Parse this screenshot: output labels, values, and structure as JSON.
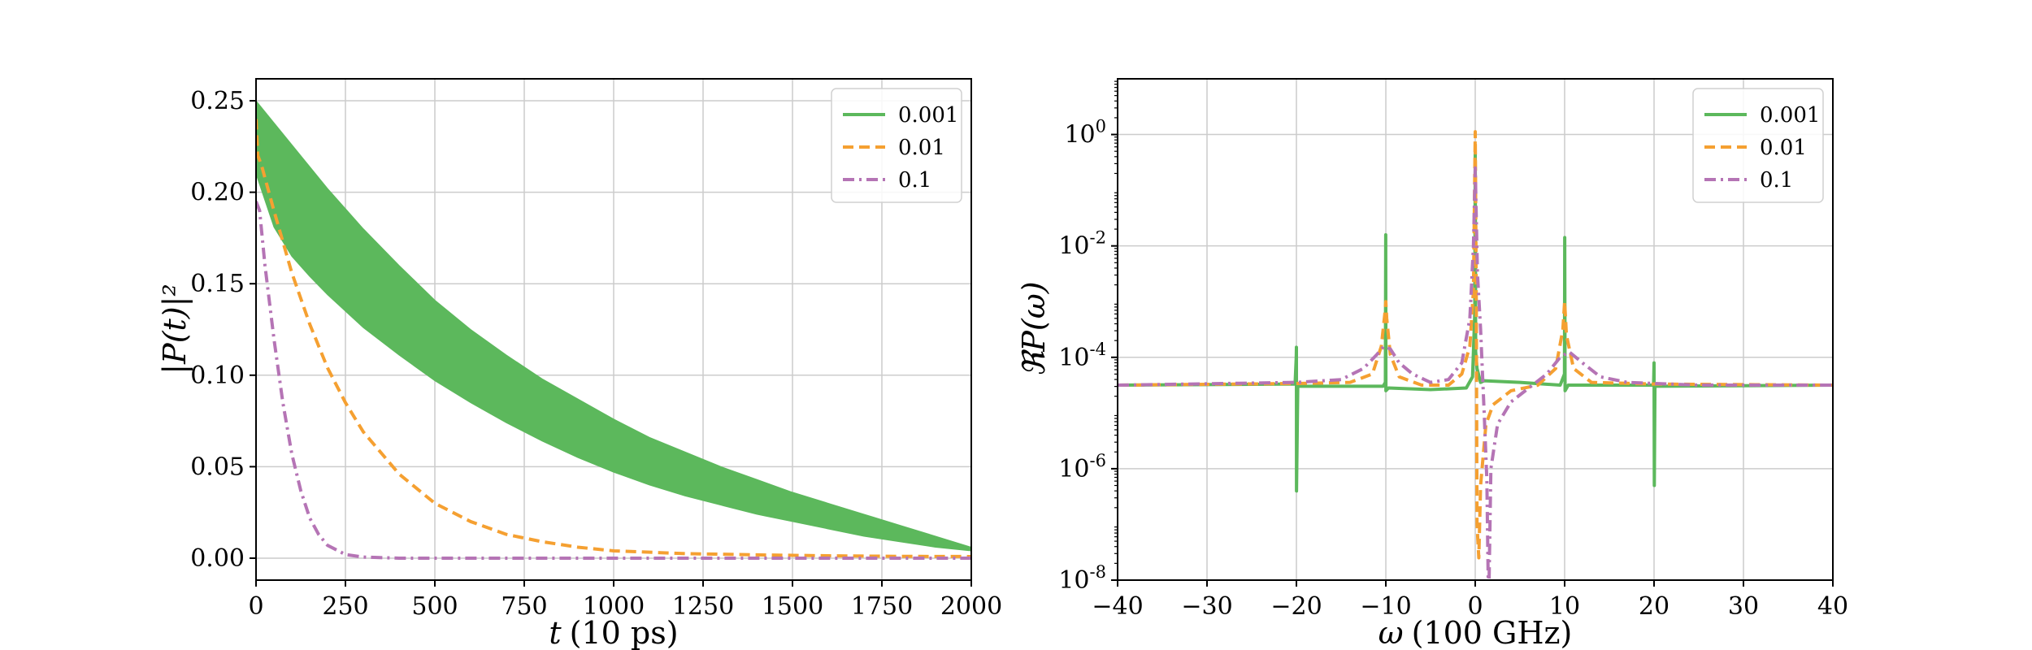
{
  "chart_data": [
    {
      "type": "line",
      "xlabel_var": "t",
      "xlabel_unit": "(10 ps)",
      "ylabel": "|P(t)|²",
      "xlim": [
        0,
        2000
      ],
      "ylim": [
        -0.012,
        0.262
      ],
      "xticks": [
        0,
        250,
        500,
        750,
        1000,
        1250,
        1500,
        1750,
        2000
      ],
      "xtick_labels": [
        "0",
        "250",
        "500",
        "750",
        "1000",
        "1250",
        "1500",
        "1750",
        "2000"
      ],
      "yticks": [
        0.0,
        0.05,
        0.1,
        0.15,
        0.2,
        0.25
      ],
      "ytick_labels": [
        "0.00",
        "0.05",
        "0.10",
        "0.15",
        "0.20",
        "0.25"
      ],
      "grid": true,
      "legend_position": "top-right",
      "series": [
        {
          "name": "0.001",
          "style": "band",
          "color": "#5cb85c",
          "upper": [
            [
              0,
              0.25
            ],
            [
              50,
              0.238
            ],
            [
              100,
              0.226
            ],
            [
              150,
              0.214
            ],
            [
              200,
              0.202
            ],
            [
              250,
              0.191
            ],
            [
              300,
              0.18
            ],
            [
              400,
              0.16
            ],
            [
              500,
              0.141
            ],
            [
              600,
              0.125
            ],
            [
              700,
              0.111
            ],
            [
              800,
              0.098
            ],
            [
              900,
              0.087
            ],
            [
              1000,
              0.076
            ],
            [
              1100,
              0.066
            ],
            [
              1200,
              0.058
            ],
            [
              1300,
              0.05
            ],
            [
              1400,
              0.043
            ],
            [
              1500,
              0.036
            ],
            [
              1600,
              0.03
            ],
            [
              1700,
              0.024
            ],
            [
              1800,
              0.018
            ],
            [
              1900,
              0.012
            ],
            [
              2000,
              0.006
            ]
          ],
          "lower": [
            [
              0,
              0.21
            ],
            [
              50,
              0.181
            ],
            [
              100,
              0.165
            ],
            [
              150,
              0.154
            ],
            [
              200,
              0.144
            ],
            [
              250,
              0.135
            ],
            [
              300,
              0.126
            ],
            [
              400,
              0.111
            ],
            [
              500,
              0.097
            ],
            [
              600,
              0.085
            ],
            [
              700,
              0.074
            ],
            [
              800,
              0.064
            ],
            [
              900,
              0.055
            ],
            [
              1000,
              0.047
            ],
            [
              1100,
              0.04
            ],
            [
              1200,
              0.034
            ],
            [
              1300,
              0.029
            ],
            [
              1400,
              0.024
            ],
            [
              1500,
              0.02
            ],
            [
              1600,
              0.016
            ],
            [
              1700,
              0.012
            ],
            [
              1800,
              0.009
            ],
            [
              1900,
              0.006
            ],
            [
              2000,
              0.004
            ]
          ]
        },
        {
          "name": "0.01",
          "style": "dashed",
          "color": "#f5a031",
          "points": [
            [
              0,
              0.24
            ],
            [
              5,
              0.22
            ],
            [
              15,
              0.215
            ],
            [
              50,
              0.19
            ],
            [
              100,
              0.156
            ],
            [
              150,
              0.128
            ],
            [
              200,
              0.104
            ],
            [
              250,
              0.085
            ],
            [
              300,
              0.069
            ],
            [
              400,
              0.046
            ],
            [
              500,
              0.03
            ],
            [
              600,
              0.02
            ],
            [
              700,
              0.013
            ],
            [
              800,
              0.009
            ],
            [
              900,
              0.006
            ],
            [
              1000,
              0.004
            ],
            [
              1200,
              0.0025
            ],
            [
              1400,
              0.0018
            ],
            [
              1600,
              0.0013
            ],
            [
              1800,
              0.001
            ],
            [
              2000,
              0.0009
            ]
          ]
        },
        {
          "name": "0.1",
          "style": "dashdot",
          "color": "#b574b5",
          "points": [
            [
              0,
              0.195
            ],
            [
              10,
              0.19
            ],
            [
              25,
              0.16
            ],
            [
              50,
              0.12
            ],
            [
              75,
              0.085
            ],
            [
              100,
              0.057
            ],
            [
              125,
              0.037
            ],
            [
              150,
              0.022
            ],
            [
              175,
              0.013
            ],
            [
              200,
              0.007
            ],
            [
              250,
              0.002
            ],
            [
              300,
              0.0006
            ],
            [
              400,
              0.0
            ],
            [
              2000,
              0.0
            ]
          ]
        }
      ]
    },
    {
      "type": "line",
      "xlabel_var": "ω",
      "xlabel_unit": "(100 GHz)",
      "ylabel": "ℜP(ω)",
      "xlim": [
        -40,
        40
      ],
      "ylim_log10": [
        -8,
        1.0
      ],
      "yscale": "log",
      "xticks": [
        -40,
        -30,
        -20,
        -10,
        0,
        10,
        20,
        30,
        40
      ],
      "xtick_labels": [
        "−40",
        "−30",
        "−20",
        "−10",
        "0",
        "10",
        "20",
        "30",
        "40"
      ],
      "ytick_log10": [
        0,
        -2,
        -4,
        -6,
        -8
      ],
      "ytick_base": "10",
      "ytick_exponents": [
        "0",
        "-2",
        "-4",
        "-6",
        "-8"
      ],
      "grid": true,
      "legend_position": "top-right",
      "series": [
        {
          "name": "0.001",
          "style": "solid",
          "color": "#5cb85c",
          "points_log10": [
            [
              -40,
              -4.5
            ],
            [
              -20.15,
              -4.48
            ],
            [
              -20.02,
              -4.0
            ],
            [
              -20.0,
              -3.82
            ],
            [
              -19.99,
              -6.4
            ],
            [
              -19.85,
              -4.52
            ],
            [
              -12,
              -4.52
            ],
            [
              -10.3,
              -4.52
            ],
            [
              -10.05,
              -4.45
            ],
            [
              -10.01,
              -1.8
            ],
            [
              -9.99,
              -4.6
            ],
            [
              -9.7,
              -4.55
            ],
            [
              -5,
              -4.58
            ],
            [
              -1,
              -4.55
            ],
            [
              -0.3,
              -4.35
            ],
            [
              -0.05,
              -3.2
            ],
            [
              0,
              -0.2
            ],
            [
              0.05,
              -3.9
            ],
            [
              0.2,
              -4.2
            ],
            [
              0.6,
              -4.45
            ],
            [
              1,
              -4.42
            ],
            [
              5,
              -4.45
            ],
            [
              9.5,
              -4.5
            ],
            [
              9.98,
              -4.3
            ],
            [
              10.01,
              -1.85
            ],
            [
              10.05,
              -4.6
            ],
            [
              10.4,
              -4.5
            ],
            [
              15,
              -4.5
            ],
            [
              19.95,
              -4.5
            ],
            [
              20.0,
              -4.1
            ],
            [
              20.03,
              -6.3
            ],
            [
              20.1,
              -4.52
            ],
            [
              40,
              -4.5
            ]
          ]
        },
        {
          "name": "0.01",
          "style": "dashed",
          "color": "#f5a031",
          "points_log10": [
            [
              -40,
              -4.5
            ],
            [
              -20,
              -4.47
            ],
            [
              -14,
              -4.45
            ],
            [
              -11.5,
              -4.3
            ],
            [
              -10.5,
              -3.8
            ],
            [
              -10.1,
              -3.2
            ],
            [
              -10,
              -3.0
            ],
            [
              -9.9,
              -3.3
            ],
            [
              -9.5,
              -3.95
            ],
            [
              -8.5,
              -4.35
            ],
            [
              -6,
              -4.5
            ],
            [
              -3,
              -4.5
            ],
            [
              -1.5,
              -4.3
            ],
            [
              -0.6,
              -3.8
            ],
            [
              -0.2,
              -2.8
            ],
            [
              0,
              0.05
            ],
            [
              0.12,
              -3.0
            ],
            [
              0.2,
              -7.0
            ],
            [
              0.4,
              -7.6
            ],
            [
              0.6,
              -6.3
            ],
            [
              1.2,
              -5.2
            ],
            [
              2,
              -4.85
            ],
            [
              4,
              -4.6
            ],
            [
              7,
              -4.5
            ],
            [
              9.0,
              -4.2
            ],
            [
              9.8,
              -3.5
            ],
            [
              10,
              -3.0
            ],
            [
              10.2,
              -3.6
            ],
            [
              11,
              -4.2
            ],
            [
              13,
              -4.45
            ],
            [
              20,
              -4.48
            ],
            [
              40,
              -4.5
            ]
          ]
        },
        {
          "name": "0.1",
          "style": "dashdot",
          "color": "#b574b5",
          "points_log10": [
            [
              -40,
              -4.5
            ],
            [
              -20,
              -4.45
            ],
            [
              -15,
              -4.4
            ],
            [
              -12.5,
              -4.2
            ],
            [
              -11,
              -3.95
            ],
            [
              -10.2,
              -3.8
            ],
            [
              -9.5,
              -3.85
            ],
            [
              -8.5,
              -4.1
            ],
            [
              -7,
              -4.3
            ],
            [
              -5,
              -4.45
            ],
            [
              -3,
              -4.4
            ],
            [
              -1.5,
              -4.1
            ],
            [
              -0.6,
              -3.3
            ],
            [
              -0.2,
              -2.0
            ],
            [
              0,
              -0.6
            ],
            [
              0.25,
              -2.5
            ],
            [
              0.6,
              -3.5
            ],
            [
              1.0,
              -5.0
            ],
            [
              1.3,
              -6.2
            ],
            [
              1.45,
              -8.0
            ],
            [
              1.55,
              -8.0
            ],
            [
              1.75,
              -6.0
            ],
            [
              2.5,
              -5.2
            ],
            [
              4,
              -4.8
            ],
            [
              6,
              -4.55
            ],
            [
              8,
              -4.3
            ],
            [
              9.5,
              -4.0
            ],
            [
              10.5,
              -3.9
            ],
            [
              12,
              -4.1
            ],
            [
              14,
              -4.35
            ],
            [
              17,
              -4.45
            ],
            [
              25,
              -4.5
            ],
            [
              40,
              -4.5
            ]
          ]
        }
      ]
    }
  ]
}
